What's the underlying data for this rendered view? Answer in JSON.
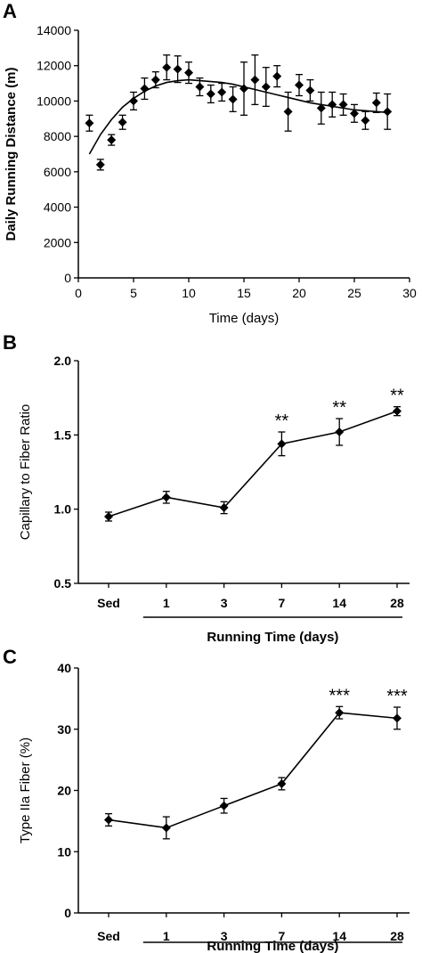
{
  "chart_data": [
    {
      "panel": "A",
      "type": "scatter",
      "title": "",
      "xlabel": "Time (days)",
      "ylabel": "Daily Running Distance (m)",
      "xlim": [
        0,
        30
      ],
      "ylim": [
        0,
        14000
      ],
      "xticks": [
        0,
        5,
        10,
        15,
        20,
        25,
        30
      ],
      "yticks": [
        0,
        2000,
        4000,
        6000,
        8000,
        10000,
        12000,
        14000
      ],
      "x": [
        1,
        2,
        3,
        4,
        5,
        6,
        7,
        8,
        9,
        10,
        11,
        12,
        13,
        14,
        15,
        16,
        17,
        18,
        19,
        20,
        21,
        22,
        23,
        24,
        25,
        26,
        27,
        28
      ],
      "y": [
        8750,
        6400,
        7800,
        8800,
        10000,
        10700,
        11200,
        11900,
        11800,
        11600,
        10800,
        10400,
        10500,
        10100,
        10700,
        11200,
        10800,
        11400,
        9400,
        10900,
        10600,
        9600,
        9800,
        9800,
        9300,
        8900,
        9900,
        9400
      ],
      "error": [
        450,
        300,
        300,
        400,
        500,
        600,
        450,
        700,
        750,
        600,
        500,
        500,
        500,
        700,
        1500,
        1400,
        1100,
        600,
        1100,
        600,
        600,
        900,
        700,
        600,
        500,
        500,
        550,
        1000
      ],
      "trendline": {
        "type": "polynomial-fit",
        "x": [
          1,
          2,
          3,
          4,
          5,
          6,
          7,
          8,
          9,
          10,
          11,
          12,
          13,
          14,
          15,
          16,
          17,
          18,
          19,
          20,
          21,
          22,
          23,
          24,
          25,
          26,
          27,
          28
        ],
        "y": [
          7000,
          8100,
          8950,
          9650,
          10150,
          10550,
          10850,
          11050,
          11150,
          11200,
          11150,
          11100,
          11050,
          10950,
          10800,
          10650,
          10500,
          10350,
          10200,
          10050,
          9900,
          9800,
          9700,
          9600,
          9500,
          9450,
          9400,
          9350
        ]
      }
    },
    {
      "panel": "B",
      "type": "line",
      "title": "",
      "xlabel": "Running Time (days)",
      "ylabel": "Capillary to Fiber Ratio",
      "categories": [
        "Sed",
        "1",
        "3",
        "7",
        "14",
        "28"
      ],
      "values": [
        0.95,
        1.08,
        1.01,
        1.44,
        1.52,
        1.66
      ],
      "error": [
        0.03,
        0.04,
        0.04,
        0.08,
        0.09,
        0.03
      ],
      "significance": [
        "",
        "",
        "",
        "**",
        "**",
        "**"
      ],
      "ylim": [
        0.5,
        2.0
      ],
      "yticks": [
        "0.5",
        "1.0",
        "1.5",
        "2.0"
      ]
    },
    {
      "panel": "C",
      "type": "line",
      "title": "",
      "xlabel": "Running Time (days)",
      "ylabel": "Type IIa Fiber (%)",
      "categories": [
        "Sed",
        "1",
        "3",
        "7",
        "14",
        "28"
      ],
      "values": [
        15.2,
        13.9,
        17.5,
        21.1,
        32.7,
        31.8
      ],
      "error": [
        1.0,
        1.8,
        1.2,
        1.0,
        1.0,
        1.8
      ],
      "significance": [
        "",
        "",
        "",
        "",
        "***",
        "***"
      ],
      "ylim": [
        0,
        40
      ],
      "yticks": [
        "0",
        "10",
        "20",
        "30",
        "40"
      ]
    }
  ]
}
